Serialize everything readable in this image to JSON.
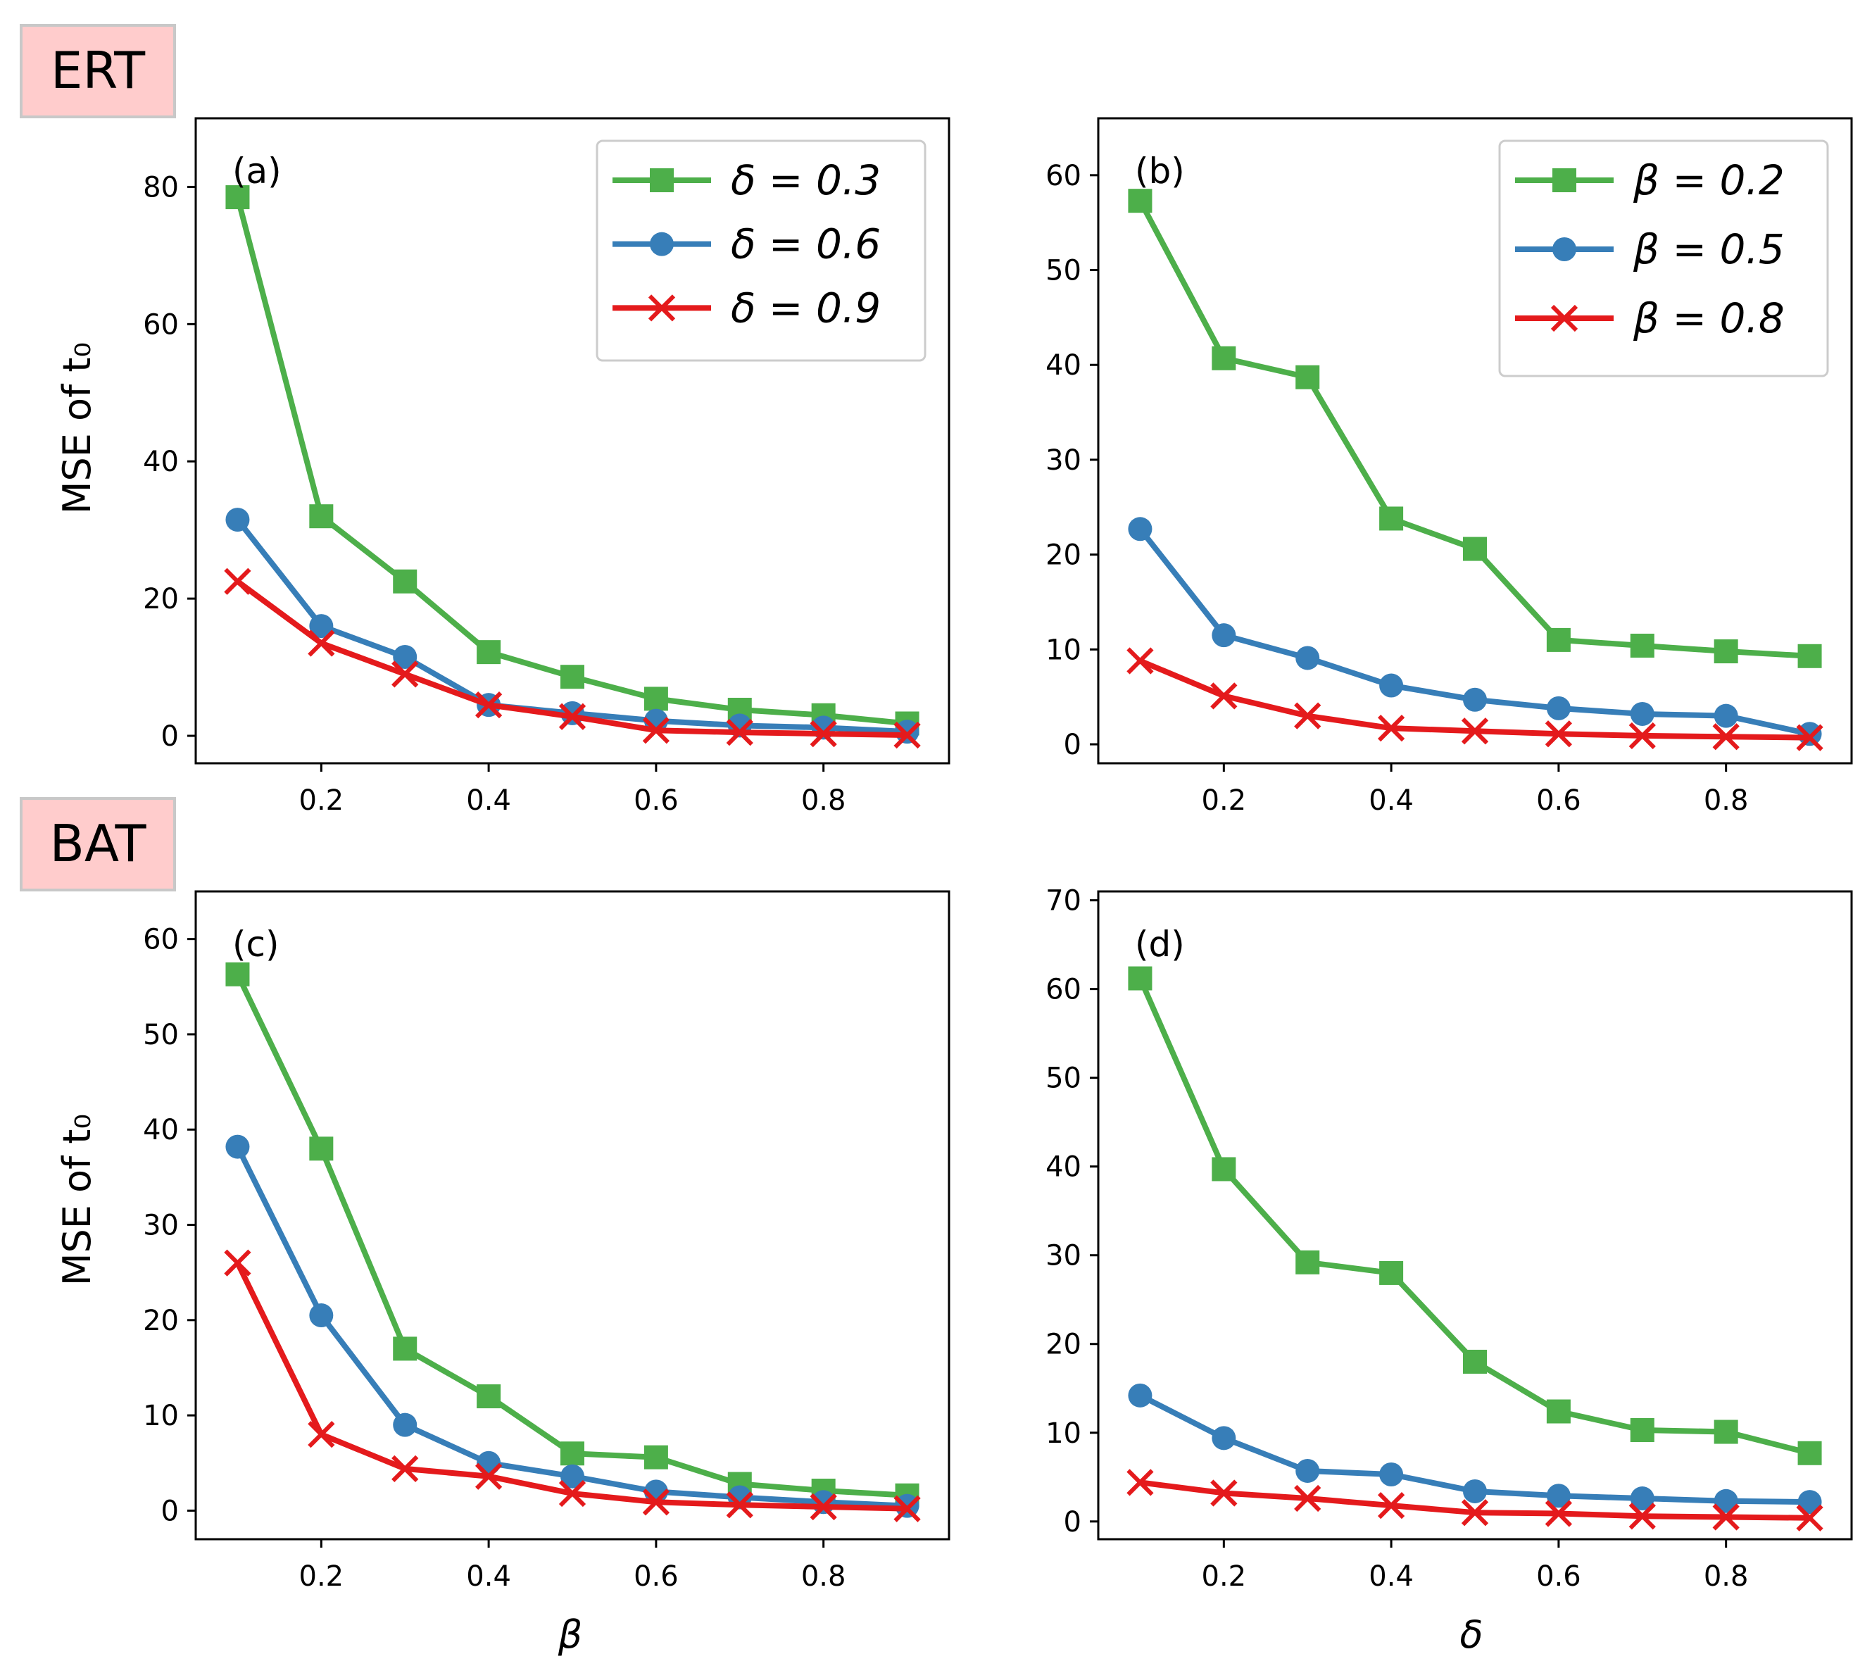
{
  "sections": [
    {
      "label": "ERT",
      "bg": "#ffcccc"
    },
    {
      "label": "BAT",
      "bg": "#ffcccc"
    }
  ],
  "colors": {
    "green": "#4daf4a",
    "blue": "#377eb8",
    "red": "#e41a1c"
  },
  "axis_labels": {
    "ylabel_top": "MSE of t₀",
    "ylabel_bottom": "MSE of t₀",
    "xlabel_left": "β",
    "xlabel_right": "δ"
  },
  "chart_data": [
    {
      "panel": "(a)",
      "type": "line",
      "xlabel": "",
      "ylabel": "MSE of t₀",
      "x": [
        0.1,
        0.2,
        0.3,
        0.4,
        0.5,
        0.6,
        0.7,
        0.8,
        0.9
      ],
      "xlim": [
        0.05,
        0.95
      ],
      "ylim": [
        -4,
        90
      ],
      "xticks": [
        "0.2",
        "0.4",
        "0.6",
        "0.8"
      ],
      "yticks": [
        "0",
        "20",
        "40",
        "60",
        "80"
      ],
      "legend": "top-right",
      "series": [
        {
          "name": "δ = 0.3",
          "marker": "square",
          "color": "green",
          "values": [
            78.5,
            32,
            22.5,
            12.2,
            8.6,
            5.4,
            3.8,
            3.0,
            1.8
          ]
        },
        {
          "name": "δ = 0.6",
          "marker": "circle",
          "color": "blue",
          "values": [
            31.5,
            16,
            11.5,
            4.5,
            3.3,
            2.2,
            1.5,
            1.2,
            0.6
          ]
        },
        {
          "name": "δ = 0.9",
          "marker": "x",
          "color": "red",
          "values": [
            22.5,
            13.5,
            9.0,
            4.5,
            2.8,
            0.8,
            0.5,
            0.3,
            0.1
          ]
        }
      ]
    },
    {
      "panel": "(b)",
      "type": "line",
      "xlabel": "",
      "ylabel": "",
      "x": [
        0.1,
        0.2,
        0.3,
        0.4,
        0.5,
        0.6,
        0.7,
        0.8,
        0.9
      ],
      "xlim": [
        0.05,
        0.95
      ],
      "ylim": [
        -2,
        66
      ],
      "xticks": [
        "0.2",
        "0.4",
        "0.6",
        "0.8"
      ],
      "yticks": [
        "0",
        "10",
        "20",
        "30",
        "40",
        "50",
        "60"
      ],
      "legend": "top-right",
      "series": [
        {
          "name": "β = 0.2",
          "marker": "square",
          "color": "green",
          "values": [
            57.3,
            40.7,
            38.7,
            23.8,
            20.6,
            11.0,
            10.4,
            9.8,
            9.3
          ]
        },
        {
          "name": "β = 0.5",
          "marker": "circle",
          "color": "blue",
          "values": [
            22.7,
            11.5,
            9.1,
            6.2,
            4.7,
            3.8,
            3.2,
            3.0,
            1.1
          ]
        },
        {
          "name": "β = 0.8",
          "marker": "x",
          "color": "red",
          "values": [
            8.8,
            5.1,
            3.0,
            1.7,
            1.4,
            1.1,
            0.9,
            0.8,
            0.7
          ]
        }
      ]
    },
    {
      "panel": "(c)",
      "type": "line",
      "xlabel": "β",
      "ylabel": "MSE of t₀",
      "x": [
        0.1,
        0.2,
        0.3,
        0.4,
        0.5,
        0.6,
        0.7,
        0.8,
        0.9
      ],
      "xlim": [
        0.05,
        0.95
      ],
      "ylim": [
        -3,
        65
      ],
      "xticks": [
        "0.2",
        "0.4",
        "0.6",
        "0.8"
      ],
      "yticks": [
        "0",
        "10",
        "20",
        "30",
        "40",
        "50",
        "60"
      ],
      "legend": "none",
      "series": [
        {
          "name": "δ = 0.3",
          "marker": "square",
          "color": "green",
          "values": [
            56.3,
            38.0,
            17.0,
            12.0,
            6.0,
            5.6,
            2.8,
            2.1,
            1.6
          ]
        },
        {
          "name": "δ = 0.6",
          "marker": "circle",
          "color": "blue",
          "values": [
            38.2,
            20.5,
            9.0,
            5.0,
            3.6,
            2.0,
            1.4,
            0.9,
            0.5
          ]
        },
        {
          "name": "δ = 0.9",
          "marker": "x",
          "color": "red",
          "values": [
            26.0,
            8.0,
            4.4,
            3.6,
            1.8,
            0.9,
            0.6,
            0.4,
            0.2
          ]
        }
      ]
    },
    {
      "panel": "(d)",
      "type": "line",
      "xlabel": "δ",
      "ylabel": "",
      "x": [
        0.1,
        0.2,
        0.3,
        0.4,
        0.5,
        0.6,
        0.7,
        0.8,
        0.9
      ],
      "xlim": [
        0.05,
        0.95
      ],
      "ylim": [
        -2,
        71
      ],
      "xticks": [
        "0.2",
        "0.4",
        "0.6",
        "0.8"
      ],
      "yticks": [
        "0",
        "10",
        "20",
        "30",
        "40",
        "50",
        "60",
        "70"
      ],
      "legend": "none",
      "series": [
        {
          "name": "β = 0.2",
          "marker": "square",
          "color": "green",
          "values": [
            61.2,
            39.7,
            29.2,
            28.0,
            18.0,
            12.4,
            10.3,
            10.1,
            7.7
          ]
        },
        {
          "name": "β = 0.5",
          "marker": "circle",
          "color": "blue",
          "values": [
            14.2,
            9.4,
            5.7,
            5.3,
            3.4,
            2.9,
            2.6,
            2.3,
            2.2
          ]
        },
        {
          "name": "β = 0.8",
          "marker": "x",
          "color": "red",
          "values": [
            4.4,
            3.2,
            2.6,
            1.8,
            1.0,
            0.9,
            0.6,
            0.5,
            0.4
          ]
        }
      ]
    }
  ]
}
